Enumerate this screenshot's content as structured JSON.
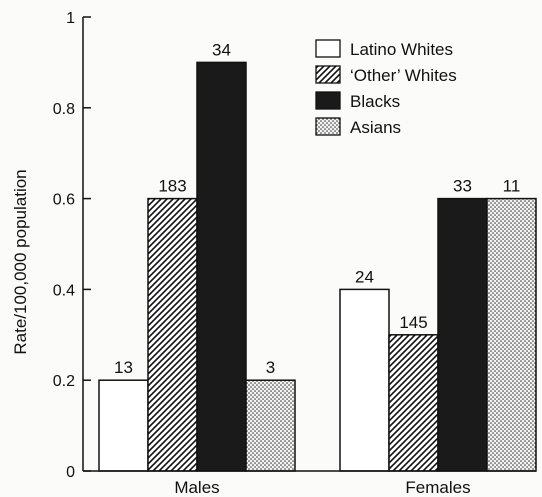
{
  "chart_data": {
    "type": "bar",
    "title": "",
    "xlabel": "",
    "ylabel": "Rate/100,000 population",
    "ylim": [
      0,
      1
    ],
    "yticks": [
      {
        "value": 0,
        "label": "0"
      },
      {
        "value": 0.2,
        "label": "0.2"
      },
      {
        "value": 0.4,
        "label": "0.4"
      },
      {
        "value": 0.6,
        "label": "0.6"
      },
      {
        "value": 0.8,
        "label": "0.8"
      },
      {
        "value": 1,
        "label": "1"
      }
    ],
    "categories": [
      "Males",
      "Females"
    ],
    "grid": false,
    "legend_position": "top-right",
    "series": [
      {
        "name": "Latino Whites",
        "pattern": "white",
        "values": [
          0.2,
          0.4
        ],
        "labels": [
          "13",
          "24"
        ]
      },
      {
        "name": "'Other' Whites",
        "pattern": "hatched",
        "values": [
          0.6,
          0.3
        ],
        "labels": [
          "183",
          "145"
        ]
      },
      {
        "name": "Blacks",
        "pattern": "black",
        "values": [
          0.9,
          0.6
        ],
        "labels": [
          "34",
          "33"
        ]
      },
      {
        "name": "Asians",
        "pattern": "dotted",
        "values": [
          0.2,
          0.6
        ],
        "labels": [
          "3",
          "11"
        ]
      }
    ],
    "legend_labels": [
      "Latino Whites",
      "‘Other’ Whites",
      "Blacks",
      "Asians"
    ]
  }
}
